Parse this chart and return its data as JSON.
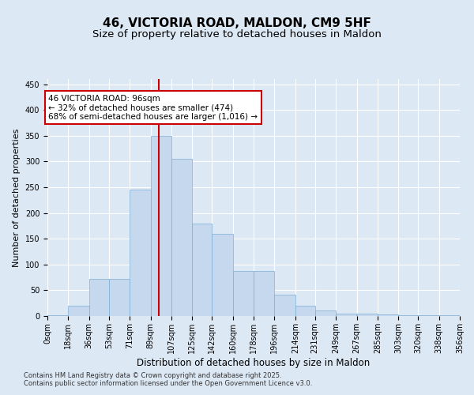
{
  "title": "46, VICTORIA ROAD, MALDON, CM9 5HF",
  "subtitle": "Size of property relative to detached houses in Maldon",
  "xlabel": "Distribution of detached houses by size in Maldon",
  "ylabel": "Number of detached properties",
  "footnote": "Contains HM Land Registry data © Crown copyright and database right 2025.\nContains public sector information licensed under the Open Government Licence v3.0.",
  "bin_edges": [
    0,
    18,
    36,
    53,
    71,
    89,
    107,
    125,
    142,
    160,
    178,
    196,
    214,
    231,
    249,
    267,
    285,
    303,
    320,
    338,
    356
  ],
  "bar_heights": [
    1,
    20,
    72,
    72,
    245,
    350,
    305,
    180,
    160,
    88,
    88,
    42,
    20,
    10,
    5,
    5,
    3,
    2,
    2,
    1
  ],
  "bar_color": "#c5d8ee",
  "bar_edgecolor": "#7aafd4",
  "property_size": 96,
  "vline_color": "#cc0000",
  "annotation_text": "46 VICTORIA ROAD: 96sqm\n← 32% of detached houses are smaller (474)\n68% of semi-detached houses are larger (1,016) →",
  "annotation_box_edgecolor": "#cc0000",
  "annotation_box_facecolor": "#ffffff",
  "ylim": [
    0,
    460
  ],
  "yticks": [
    0,
    50,
    100,
    150,
    200,
    250,
    300,
    350,
    400,
    450
  ],
  "bg_color": "#dde8f5",
  "plot_bg_color": "#dde8f5",
  "grid_color": "#ffffff",
  "title_fontsize": 11,
  "subtitle_fontsize": 9.5,
  "axis_label_fontsize": 8.5,
  "ylabel_fontsize": 8,
  "tick_fontsize": 7,
  "annot_fontsize": 7.5,
  "footnote_fontsize": 6
}
